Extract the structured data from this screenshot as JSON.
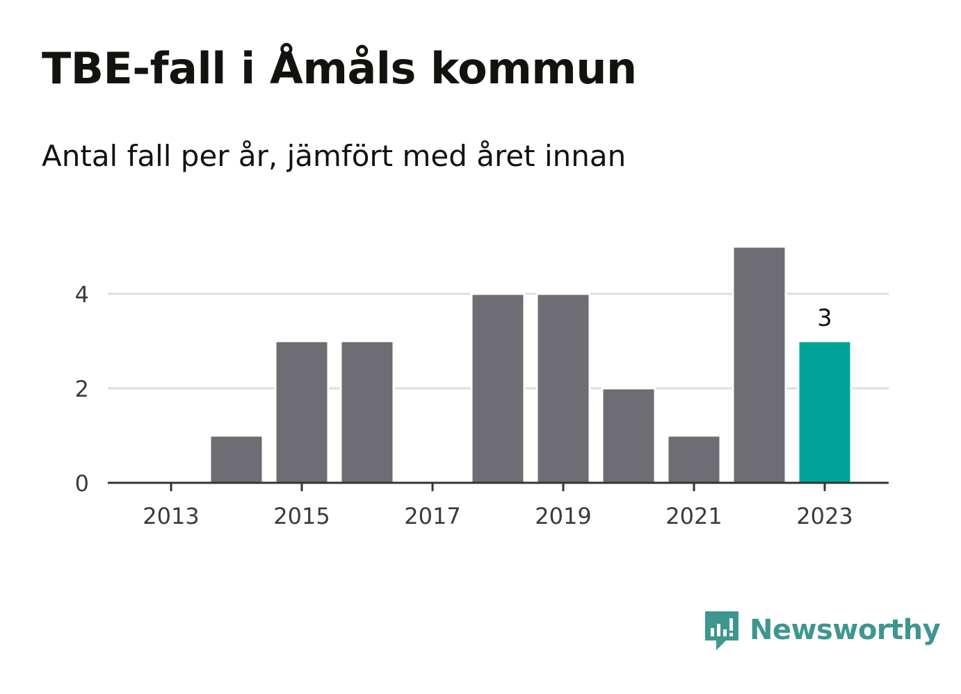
{
  "title": "TBE-fall i Åmåls kommun",
  "subtitle": "Antal fall per år, jämfört med året innan",
  "brand": {
    "name": "Newsworthy",
    "icon": "newsworthy-logo-icon",
    "color": "#3e9690"
  },
  "colors": {
    "bar": "#6e6d73",
    "highlight": "#00a398",
    "grid": "#dddddd",
    "axis": "#333333"
  },
  "chart_data": {
    "type": "bar",
    "categories": [
      "2013",
      "2014",
      "2015",
      "2016",
      "2017",
      "2018",
      "2019",
      "2020",
      "2021",
      "2022",
      "2023"
    ],
    "values": [
      0,
      1,
      3,
      3,
      0,
      4,
      4,
      2,
      1,
      5,
      3
    ],
    "highlight_index": 10,
    "highlight_label": "3",
    "x_tick_labels": [
      "2013",
      "2015",
      "2017",
      "2019",
      "2021",
      "2023"
    ],
    "y_ticks": [
      0,
      2,
      4
    ],
    "ylim": [
      0,
      5
    ],
    "grid": true,
    "xlabel": "",
    "ylabel": ""
  }
}
